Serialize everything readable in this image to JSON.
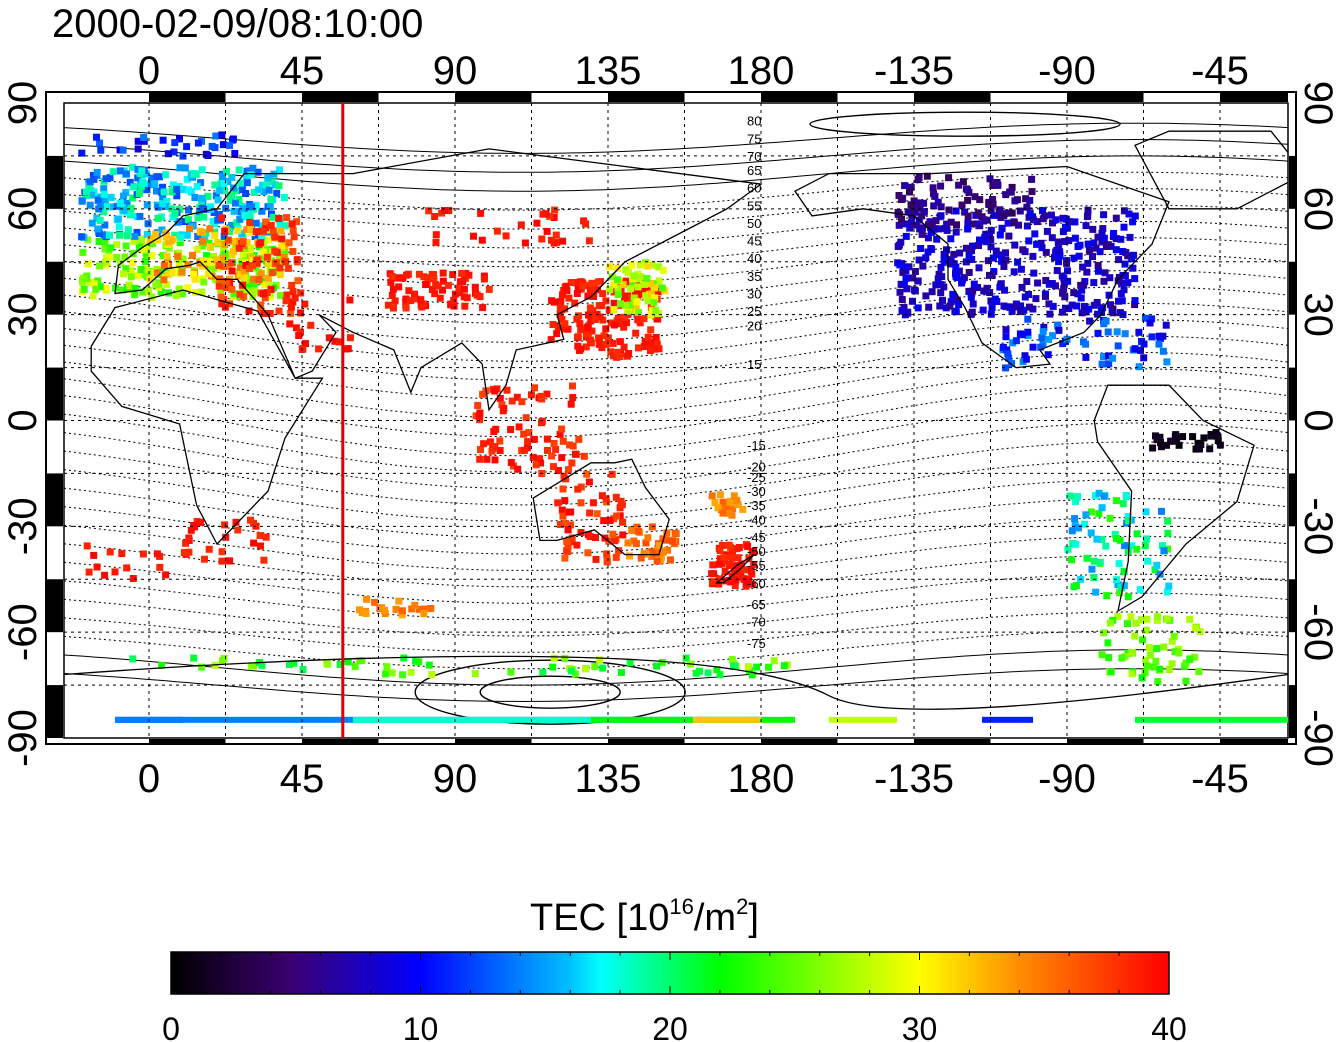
{
  "title": "2000-02-09/08:10:00",
  "map": {
    "x_ticks": [
      "0",
      "45",
      "90",
      "135",
      "180",
      "-135",
      "-90",
      "-45"
    ],
    "y_ticks_left": [
      "90",
      "60",
      "30",
      "0",
      "-30",
      "-60",
      "-90"
    ],
    "y_ticks_right": [
      "90",
      "60",
      "30",
      "0",
      "-30",
      "-60",
      "-90"
    ],
    "x_range_deg": [
      -25,
      335
    ],
    "y_range_deg": [
      -90,
      90
    ],
    "grid": true,
    "terminator_longitude": 57,
    "terminator_color": "#e00000",
    "contour_labels": [
      "80",
      "75",
      "70",
      "65",
      "60",
      "55",
      "50",
      "45",
      "40",
      "35",
      "30",
      "25",
      "20",
      "15",
      "-15",
      "-20",
      "-25",
      "-30",
      "-35",
      "-40",
      "-45",
      "-50",
      "-55",
      "-60",
      "-65",
      "-70",
      "-75"
    ]
  },
  "colorbar": {
    "label_text": "TEC  [10",
    "label_sup1": "16",
    "label_mid": "/m",
    "label_sup2": "2",
    "label_end": "]",
    "ticks": [
      "0",
      "10",
      "20",
      "30",
      "40"
    ],
    "range": [
      0,
      40
    ],
    "colors": [
      "#000000",
      "#4b0082",
      "#0000ff",
      "#00ffff",
      "#00ff00",
      "#ffff00",
      "#ff8c00",
      "#ff0000"
    ]
  }
}
